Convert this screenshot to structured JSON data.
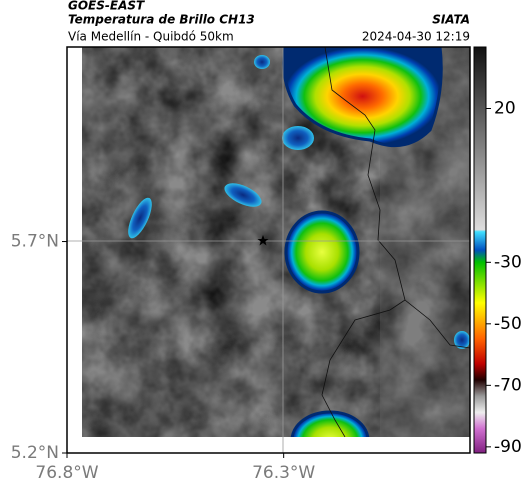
{
  "header": {
    "source": "GOES-EAST",
    "title": "Temperatura de Brillo CH13",
    "org": "SIATA",
    "subtitle": "Vía Medellín - Quibdó 50km",
    "datetime": "2024-04-30 12:19"
  },
  "map": {
    "xlim": [
      -76.8,
      -75.87
    ],
    "ylim": [
      5.2,
      6.16
    ],
    "xticks": [
      {
        "value": -76.8,
        "label": "76.8°W"
      },
      {
        "value": -76.3,
        "label": "76.3°W"
      }
    ],
    "yticks": [
      {
        "value": 5.7,
        "label": "5.7°N"
      },
      {
        "value": 5.2,
        "label": "5.2°N"
      }
    ]
  },
  "colorbar": {
    "lim": [
      -92,
      40
    ],
    "ticks": [
      20,
      -30,
      -50,
      -70,
      -90
    ]
  }
}
